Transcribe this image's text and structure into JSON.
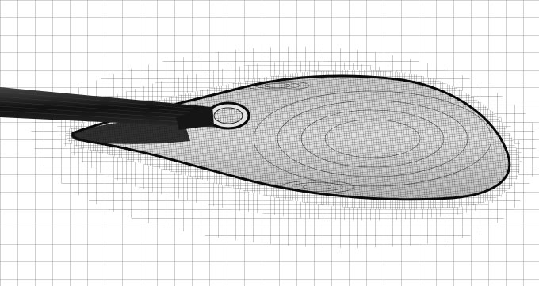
{
  "figure": {
    "description_visible_text": "",
    "colors": {
      "background": "#ffffff",
      "coarse_grid": "#7a7a7a",
      "medium_grid": "#6a6a6a",
      "fine_grid": "#4a4a4a",
      "surface_mesh": "#1a1a1a",
      "body_fill": "#d8d8d8",
      "sting": "#1e1e1e"
    },
    "elements": [
      "coarse-background-grid",
      "refinement-zone-medium",
      "refinement-zone-fine",
      "surface-mesh-body",
      "support-sting",
      "nacelle-inlet"
    ]
  }
}
